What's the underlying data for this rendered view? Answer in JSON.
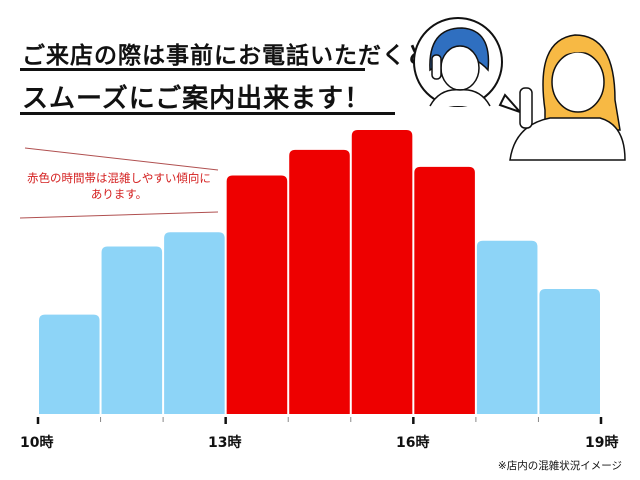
{
  "header": {
    "line1": "ご来店の際は事前にお電話いただくと",
    "line2": "スムーズにご案内出来ます！"
  },
  "note": {
    "line1": "赤色の時間帯は混雑しやすい傾向に",
    "line2": "あります。"
  },
  "footnote": "※店内の混雑状況イメージ",
  "colors": {
    "busy": "#ee0000",
    "normal": "#8dd4f7",
    "accent": "#d42020"
  },
  "illustration": "two-women-on-phone-icon",
  "chart_data": {
    "type": "bar",
    "title": "",
    "xlabel": "",
    "ylabel": "",
    "x_tick_labels": [
      "10時",
      "13時",
      "16時",
      "19時"
    ],
    "x_range": [
      10,
      19
    ],
    "bins": [
      [
        10,
        11
      ],
      [
        11,
        12
      ],
      [
        12,
        13
      ],
      [
        13,
        14
      ],
      [
        14,
        15
      ],
      [
        15,
        16
      ],
      [
        16,
        17
      ],
      [
        17,
        18
      ],
      [
        18,
        19
      ]
    ],
    "values": [
      35,
      59,
      64,
      84,
      93,
      100,
      87,
      61,
      44
    ],
    "busy": [
      false,
      false,
      false,
      true,
      true,
      true,
      true,
      false,
      false
    ],
    "ylim": [
      0,
      100
    ],
    "grid": false,
    "legend": "none"
  }
}
